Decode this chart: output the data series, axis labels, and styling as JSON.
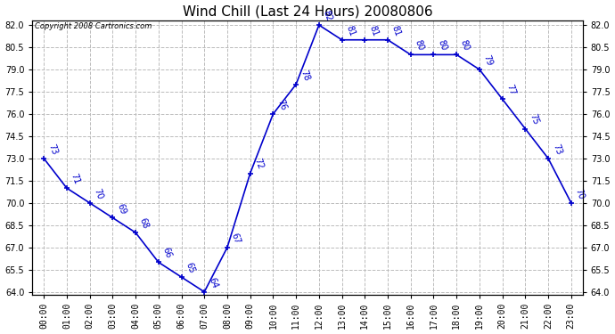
{
  "title": "Wind Chill (Last 24 Hours) 20080806",
  "copyright_text": "Copyright 2008 Cartronics.com",
  "hours": [
    "00:00",
    "01:00",
    "02:00",
    "03:00",
    "04:00",
    "05:00",
    "06:00",
    "07:00",
    "08:00",
    "09:00",
    "10:00",
    "11:00",
    "12:00",
    "13:00",
    "14:00",
    "15:00",
    "16:00",
    "17:00",
    "18:00",
    "19:00",
    "20:00",
    "21:00",
    "22:00",
    "23:00"
  ],
  "values": [
    73,
    71,
    70,
    69,
    68,
    66,
    65,
    64,
    67,
    72,
    76,
    78,
    82,
    81,
    81,
    81,
    80,
    80,
    80,
    79,
    77,
    75,
    73,
    70
  ],
  "line_color": "#0000cc",
  "marker": "+",
  "ylim_min": 64.0,
  "ylim_max": 82.0,
  "ytick_step": 1.5,
  "grid_color": "#bbbbbb",
  "grid_style": "--",
  "background_color": "#ffffff",
  "title_fontsize": 11,
  "tick_fontsize": 7,
  "annotation_fontsize": 7,
  "annotation_rotation": -70
}
